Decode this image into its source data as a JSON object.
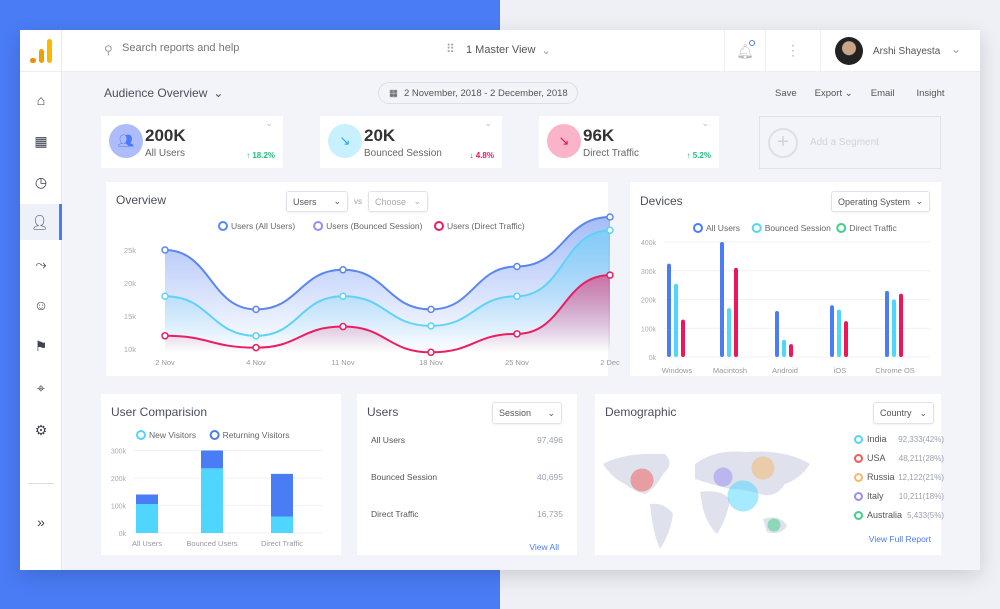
{
  "colors": {
    "accent": "#4a7cf6",
    "cyan": "#4fd6ff",
    "pink": "#f0145a",
    "green": "#22c07a",
    "red": "#f0445a"
  },
  "search": {
    "placeholder": "Search reports and help"
  },
  "header": {
    "view": "1 Master View",
    "user": "Arshi Shayesta"
  },
  "sidebar": {
    "items": [
      {
        "icon": "home-icon"
      },
      {
        "icon": "dashboard-add-icon"
      },
      {
        "icon": "clock-icon"
      },
      {
        "icon": "user-icon",
        "active": true
      },
      {
        "icon": "share-flow-icon"
      },
      {
        "icon": "smiley-icon"
      },
      {
        "icon": "flag-icon"
      },
      {
        "icon": "target-icon"
      },
      {
        "icon": "gear-icon"
      },
      {
        "icon": "expand-icon"
      }
    ]
  },
  "page": {
    "title": "Audience Overview",
    "date_range": "2 November, 2018 - 2 December, 2018",
    "actions": {
      "save": "Save",
      "export": "Export",
      "email": "Email",
      "insight": "Insight"
    }
  },
  "stats": [
    {
      "value": "200K",
      "label": "All Users",
      "change": "↑ 18.2%",
      "trend": "up"
    },
    {
      "value": "20K",
      "label": "Bounced Session",
      "change": "↓ 4.8%",
      "trend": "down"
    },
    {
      "value": "96K",
      "label": "Direct Traffic",
      "change": "↑ 5.2%",
      "trend": "up"
    }
  ],
  "add_segment": "Add a Segment",
  "overview": {
    "title": "Overview",
    "select1": "Users",
    "vs": "vs",
    "select2": "Choose"
  },
  "devices": {
    "title": "Devices",
    "select": "Operating System"
  },
  "user_comparison": {
    "title": "User Comparision"
  },
  "users_table": {
    "title": "Users",
    "select": "Session",
    "rows": [
      {
        "label": "All Users",
        "value": "97,496"
      },
      {
        "label": "Bounced Session",
        "value": "40,695"
      },
      {
        "label": "Direct Traffic",
        "value": "16,735"
      }
    ],
    "link": "View All"
  },
  "demographic": {
    "title": "Demographic",
    "select": "Country",
    "rows": [
      {
        "country": "India",
        "value": "92,333(42%)",
        "color": "#4fd6ff"
      },
      {
        "country": "USA",
        "value": "48,211(28%)",
        "color": "#f05a5a"
      },
      {
        "country": "Russia",
        "value": "12,122(21%)",
        "color": "#f7b86a"
      },
      {
        "country": "Italy",
        "value": "10,211(18%)",
        "color": "#9b8cf5"
      },
      {
        "country": "Australia",
        "value": "5,433(5%)",
        "color": "#3fd08a"
      }
    ],
    "link": "View Full Report"
  },
  "chart_data": [
    {
      "type": "area",
      "x": [
        "2 Nov",
        "4 Nov",
        "11 Nov",
        "18 Nov",
        "25 Nov",
        "2 Dec"
      ],
      "yticks": [
        "10k",
        "15k",
        "20k",
        "25k"
      ],
      "ylim": [
        10,
        25
      ],
      "series": [
        {
          "name": "Users (All Users)",
          "values": [
            25,
            16,
            22,
            16,
            22.5,
            30
          ],
          "color": "#5b86f2"
        },
        {
          "name": "Users (Bounced Session)",
          "values": [
            18,
            12,
            18,
            13.5,
            18,
            28
          ],
          "color": "#5fd3f7",
          "legend_color": "#9b8cf5"
        },
        {
          "name": "Users (Direct Traffic)",
          "values": [
            12,
            10.2,
            13.4,
            9.5,
            12.3,
            21.2
          ],
          "color": "#ea1e60"
        }
      ]
    },
    {
      "type": "bar",
      "categories": [
        "Windows",
        "Macintosh",
        "Android",
        "iOS",
        "Chrome OS"
      ],
      "yticks": [
        "0k",
        "100k",
        "200k",
        "300k",
        "400k"
      ],
      "ylim": [
        0,
        400
      ],
      "series": [
        {
          "name": "All Users",
          "values": [
            325,
            400,
            160,
            180,
            230
          ],
          "color": "#4a7cf6"
        },
        {
          "name": "Bounced Session",
          "values": [
            255,
            170,
            60,
            165,
            200
          ],
          "color": "#4fd6ff"
        },
        {
          "name": "Direct Traffic",
          "values": [
            130,
            310,
            45,
            125,
            220
          ],
          "color": "#f0145a",
          "legend_color": "#3fd08a"
        }
      ]
    },
    {
      "type": "bar",
      "stacked": true,
      "categories": [
        "All Users",
        "Bounced Users",
        "Direct Traffic"
      ],
      "yticks": [
        "0k",
        "100k",
        "200k",
        "300k"
      ],
      "ylim": [
        0,
        300
      ],
      "series": [
        {
          "name": "New Visitors",
          "values": [
            105,
            235,
            60
          ],
          "color": "#4fd6ff"
        },
        {
          "name": "Returning Visitors",
          "values": [
            35,
            65,
            155
          ],
          "color": "#4a7cf6"
        }
      ]
    }
  ]
}
